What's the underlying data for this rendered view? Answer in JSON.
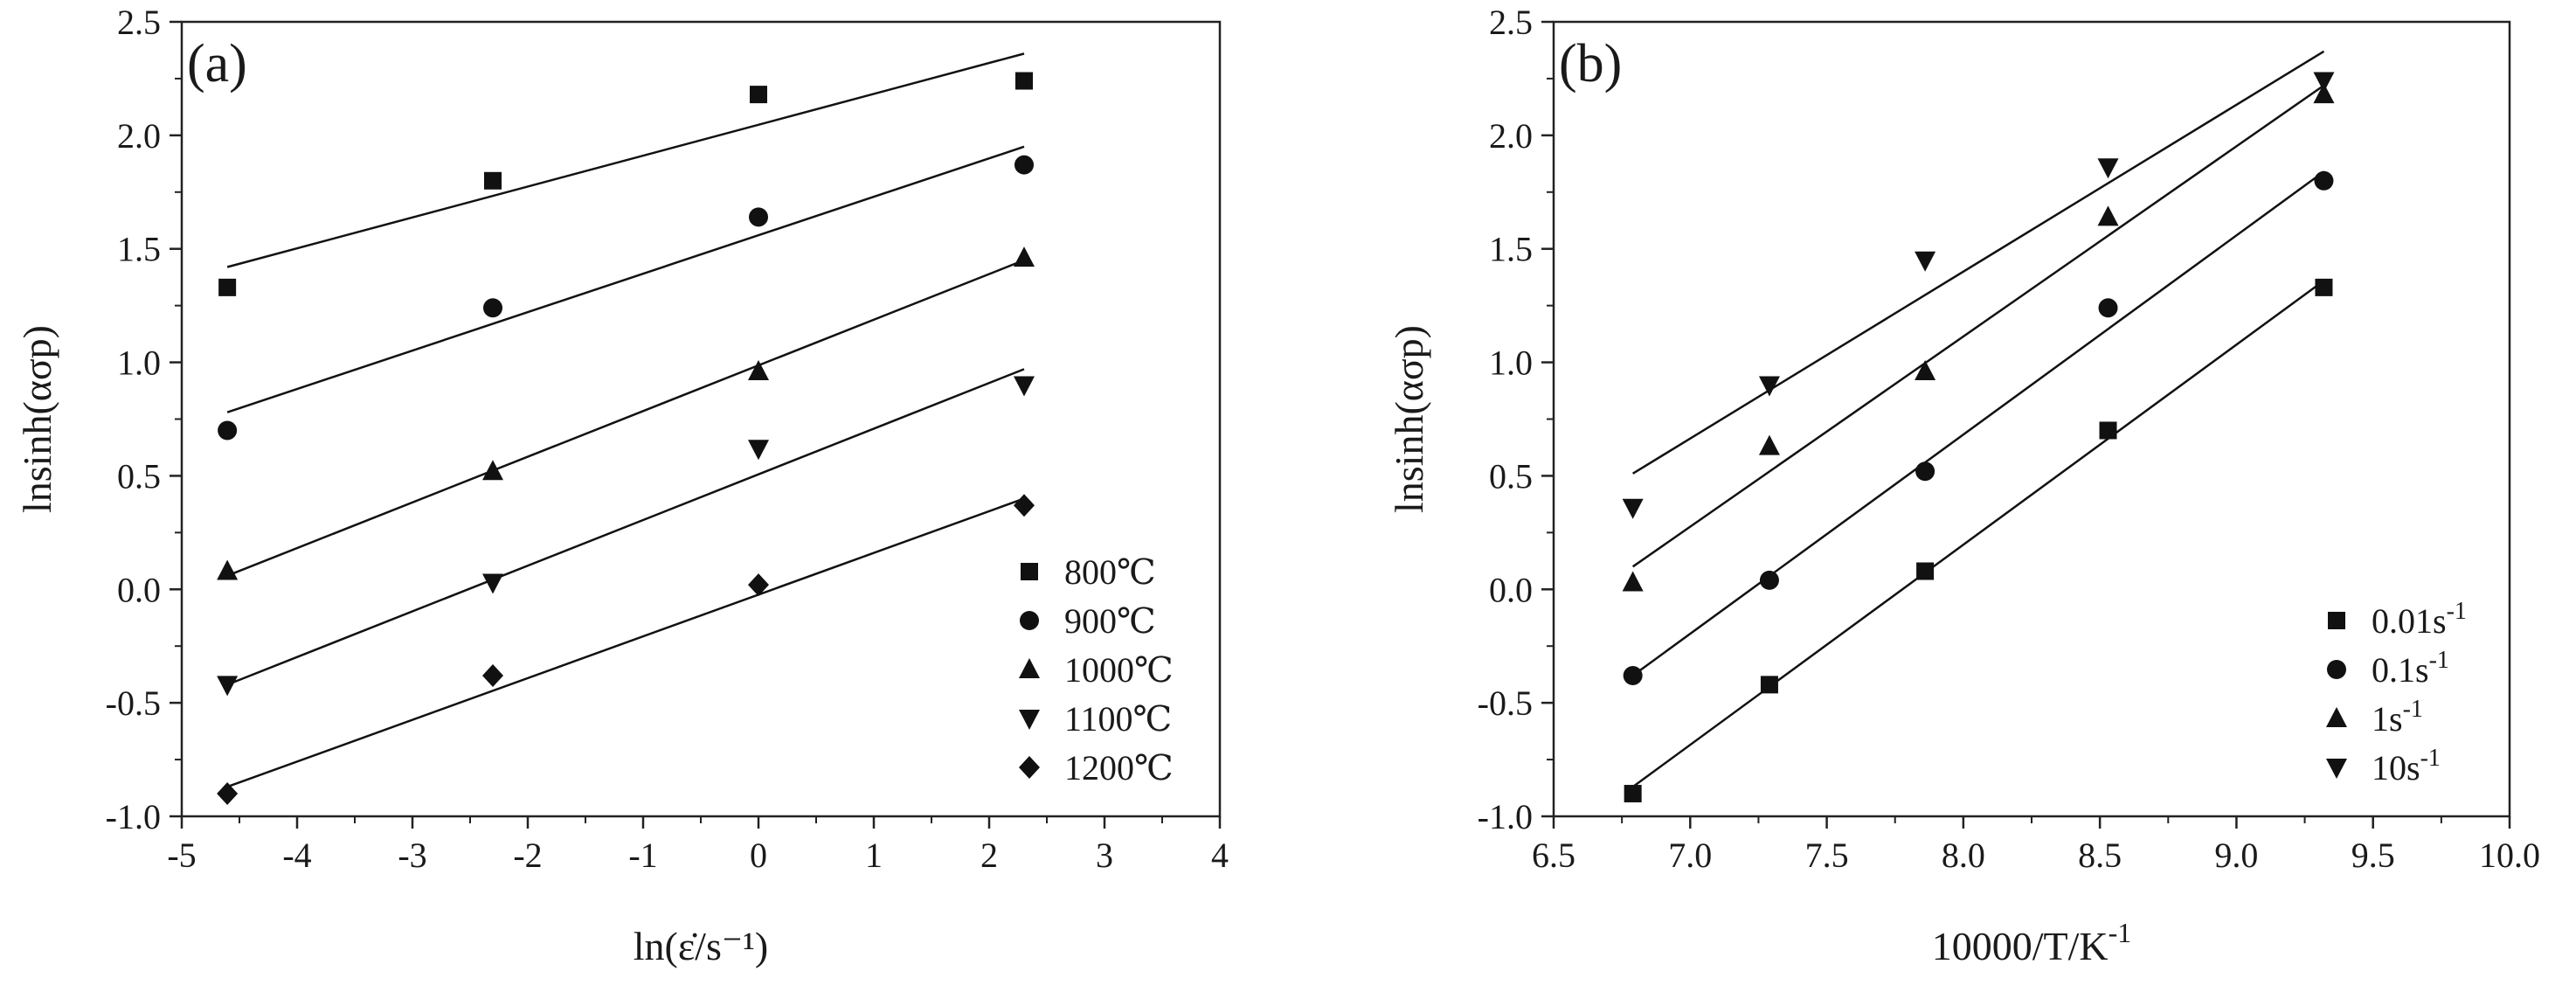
{
  "chart_data": [
    {
      "type": "scatter",
      "panel_label": "(a)",
      "xlabel": "ln(ε̇/s⁻¹)",
      "ylabel": "lnsinh(ασp)",
      "xlim": [
        -5,
        4
      ],
      "ylim": [
        -1.0,
        2.5
      ],
      "x_ticks": [
        "-5",
        "-4",
        "-3",
        "-2",
        "-1",
        "0",
        "1",
        "2",
        "3",
        "4"
      ],
      "y_ticks": [
        "2.5",
        "2.0",
        "1.5",
        "1.0",
        "0.5",
        "0.0",
        "-0.5",
        "-1.0"
      ],
      "legend": "bottom-right",
      "x": [
        -4.605,
        -2.303,
        0,
        2.303
      ],
      "series": [
        {
          "name": "800℃",
          "marker": "square",
          "values": [
            1.33,
            1.8,
            2.18,
            2.24
          ],
          "fit": [
            [
              -4.605,
              1.42
            ],
            [
              2.303,
              2.36
            ]
          ]
        },
        {
          "name": "900℃",
          "marker": "circle",
          "values": [
            0.7,
            1.24,
            1.64,
            1.87
          ],
          "fit": [
            [
              -4.605,
              0.78
            ],
            [
              2.303,
              1.95
            ]
          ]
        },
        {
          "name": "1000℃",
          "marker": "triangle-up",
          "values": [
            0.08,
            0.52,
            0.96,
            1.46
          ],
          "fit": [
            [
              -4.605,
              0.06
            ],
            [
              2.303,
              1.45
            ]
          ]
        },
        {
          "name": "1100℃",
          "marker": "triangle-down",
          "values": [
            -0.42,
            0.03,
            0.62,
            0.9
          ],
          "fit": [
            [
              -4.605,
              -0.42
            ],
            [
              2.303,
              0.97
            ]
          ]
        },
        {
          "name": "1200℃",
          "marker": "diamond",
          "values": [
            -0.9,
            -0.38,
            0.02,
            0.37
          ],
          "fit": [
            [
              -4.605,
              -0.87
            ],
            [
              2.303,
              0.4
            ]
          ]
        }
      ]
    },
    {
      "type": "scatter",
      "panel_label": "(b)",
      "xlabel": "10000/T/K",
      "xlabel_exp": "-1",
      "ylabel": "lnsinh(ασp)",
      "xlim": [
        6.5,
        10.0
      ],
      "ylim": [
        -1.0,
        2.5
      ],
      "x_ticks": [
        "6.5",
        "7.0",
        "7.5",
        "8.0",
        "8.5",
        "9.0",
        "9.5",
        "10.0"
      ],
      "y_ticks": [
        "2.5",
        "2.0",
        "1.5",
        "1.0",
        "0.5",
        "0.0",
        "-0.5",
        "-1.0"
      ],
      "legend": "bottom-right",
      "x": [
        6.79,
        7.29,
        7.86,
        8.53,
        9.32
      ],
      "series": [
        {
          "name": "0.01s",
          "name_exp": "-1",
          "marker": "square",
          "values": [
            -0.9,
            -0.42,
            0.08,
            0.7,
            1.33
          ],
          "fit": [
            [
              6.79,
              -0.87
            ],
            [
              9.32,
              1.36
            ]
          ]
        },
        {
          "name": "0.1s",
          "name_exp": "-1",
          "marker": "circle",
          "values": [
            -0.38,
            0.04,
            0.52,
            1.24,
            1.8
          ],
          "fit": [
            [
              6.79,
              -0.38
            ],
            [
              9.32,
              1.84
            ]
          ]
        },
        {
          "name": "1s",
          "name_exp": "-1",
          "marker": "triangle-up",
          "values": [
            0.03,
            0.63,
            0.96,
            1.64,
            2.18
          ],
          "fit": [
            [
              6.79,
              0.1
            ],
            [
              9.32,
              2.22
            ]
          ]
        },
        {
          "name": "10s",
          "name_exp": "-1",
          "marker": "triangle-down",
          "values": [
            0.36,
            0.9,
            1.45,
            1.86,
            2.24
          ],
          "fit": [
            [
              6.79,
              0.51
            ],
            [
              9.32,
              2.37
            ]
          ]
        }
      ]
    }
  ]
}
